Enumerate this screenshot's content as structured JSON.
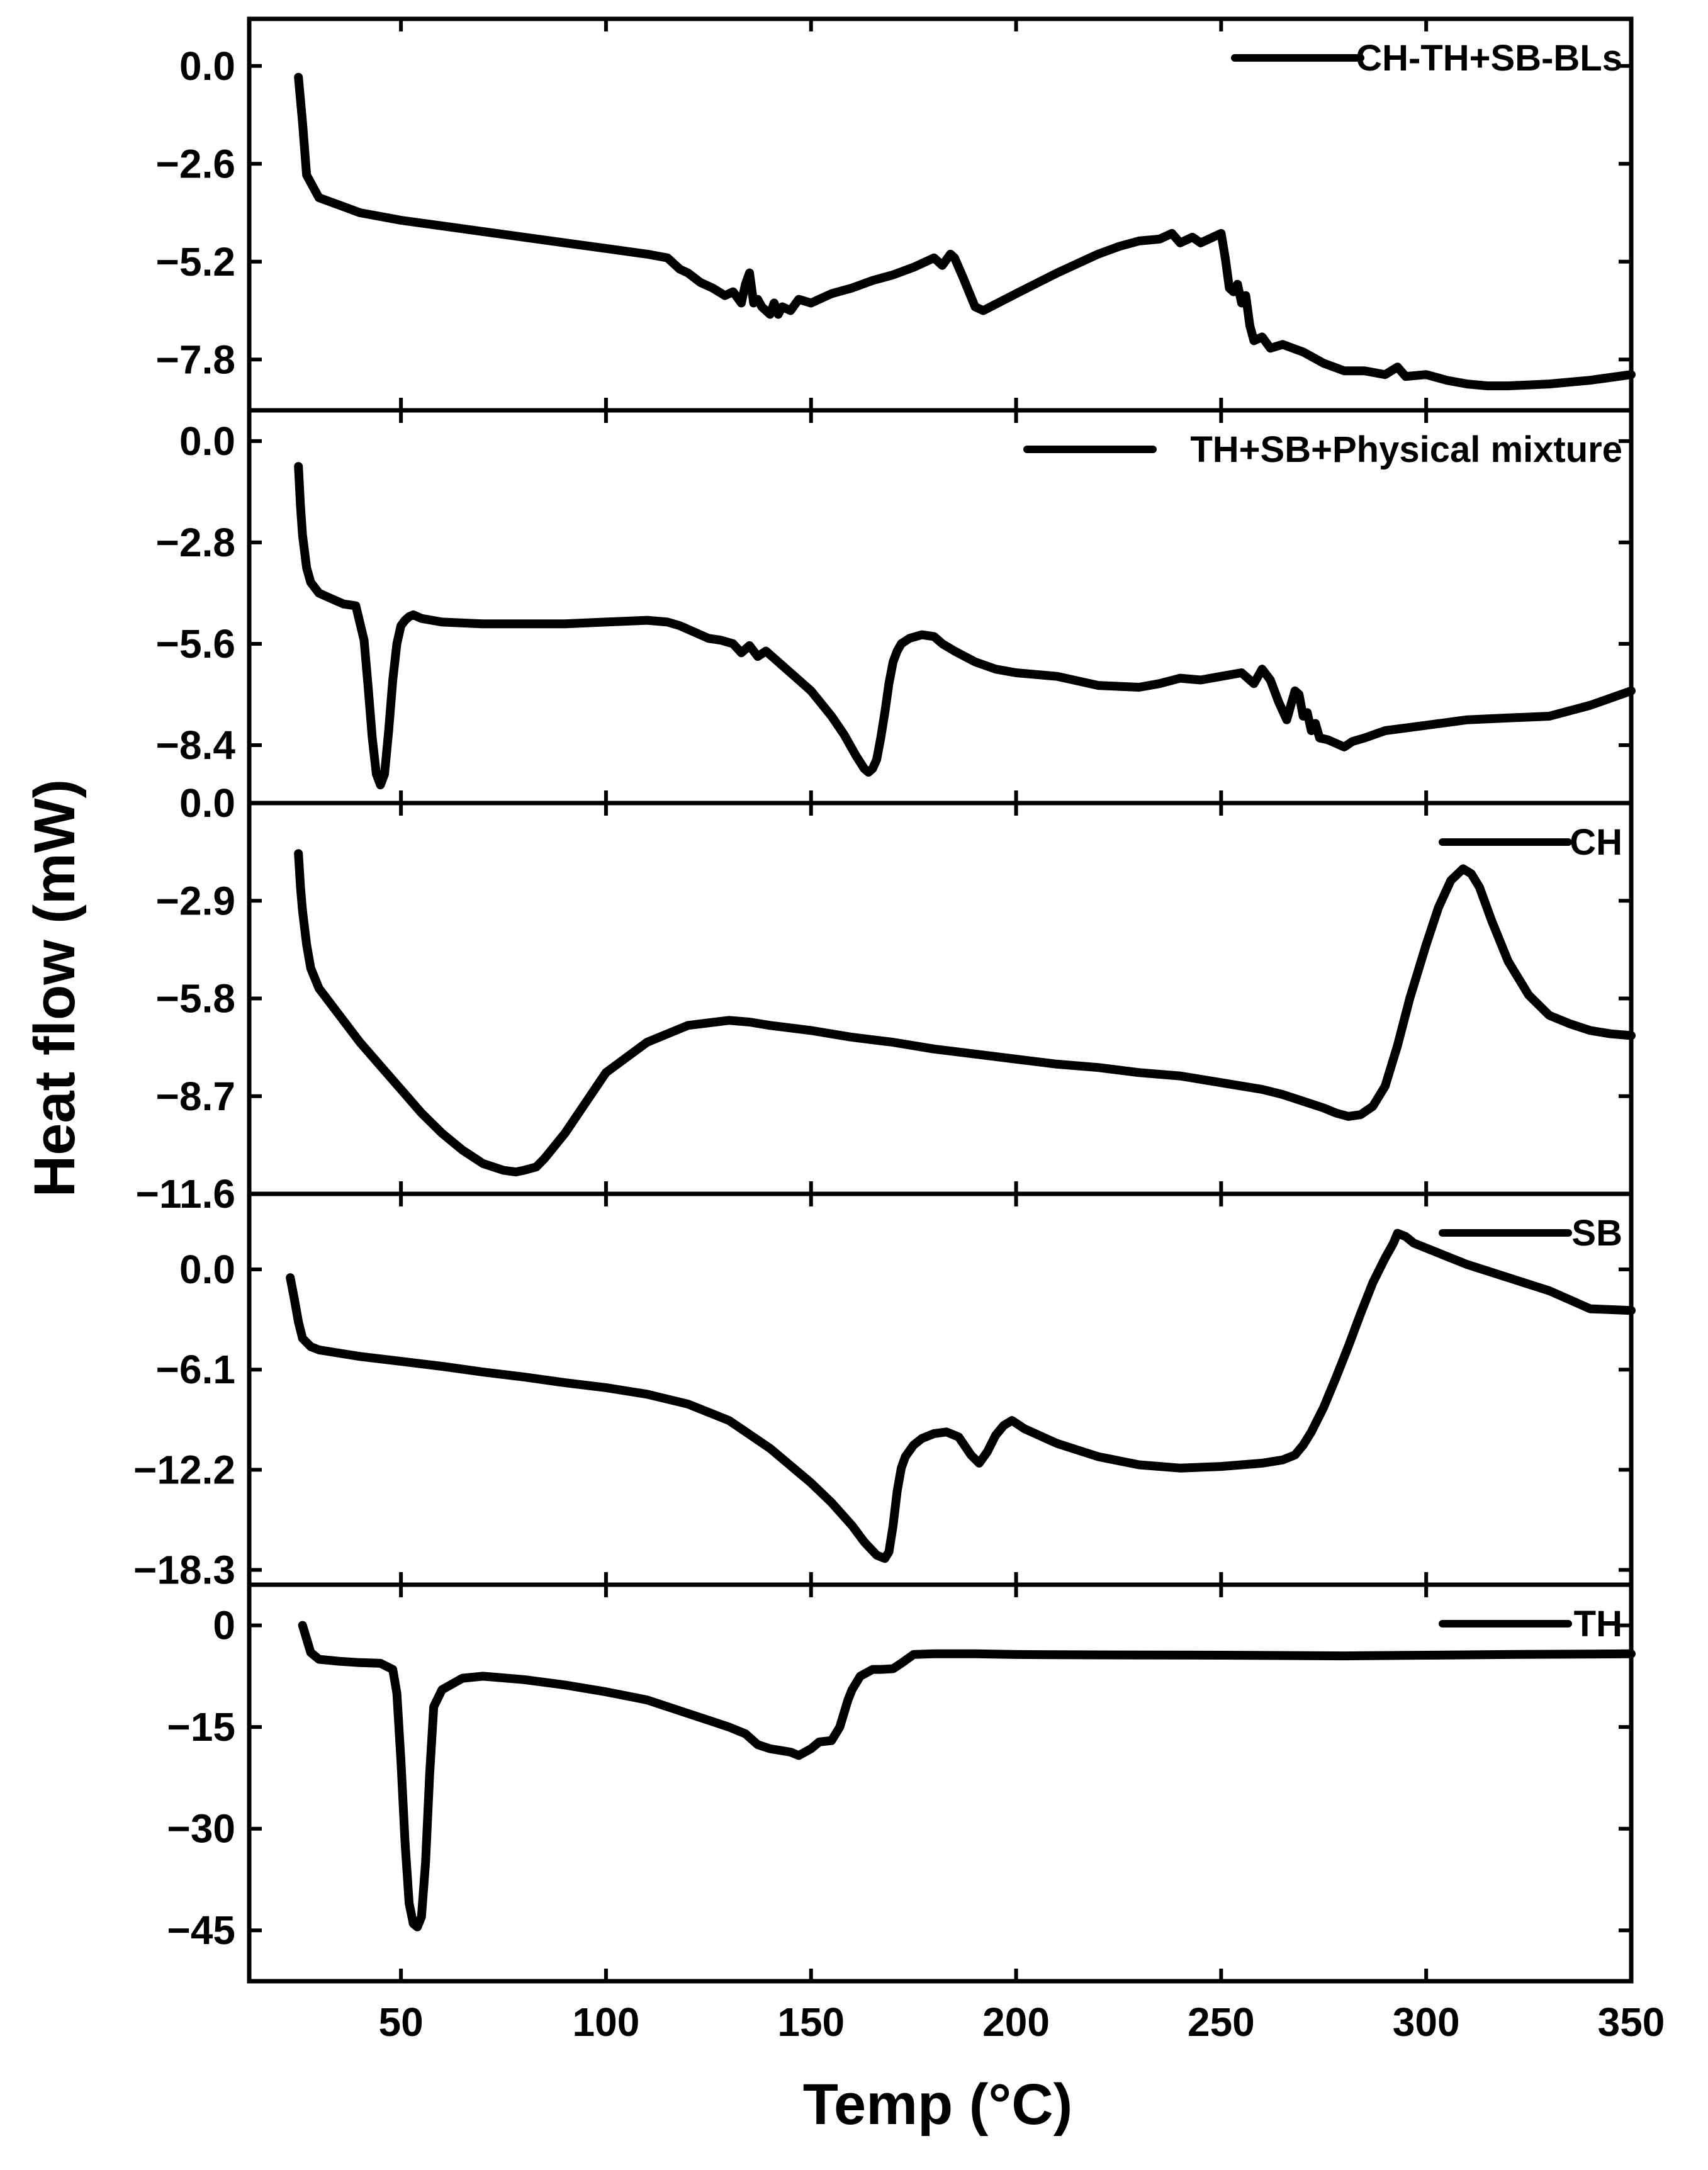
{
  "chart_data": {
    "type": "line",
    "layout": "stacked-panels",
    "xlabel": "Temp (°C)",
    "ylabel": "Heat flow (mW)",
    "xlim": [
      13,
      350
    ],
    "xticks": [
      50,
      100,
      150,
      200,
      250,
      300,
      350
    ],
    "xtick_labels": [
      "50",
      "100",
      "150",
      "200",
      "250",
      "300",
      "350"
    ],
    "grid": false,
    "legend_placement": "top-right",
    "line_color": "#000000",
    "panels": [
      {
        "name": "CH-TH+SB-BLs",
        "ylim": [
          -9.15,
          1.25
        ],
        "yticks": [
          0.0,
          -2.6,
          -5.2,
          -7.8
        ],
        "ytick_labels": [
          "0.0",
          "-2.6",
          "-5.2",
          "-7.8"
        ],
        "x": [
          25,
          26,
          27,
          30,
          35,
          40,
          50,
          60,
          70,
          80,
          90,
          100,
          110,
          115,
          118,
          120,
          123,
          126,
          129,
          131,
          133,
          134,
          135,
          136,
          137,
          138,
          140,
          141,
          142,
          143,
          145,
          147,
          150,
          155,
          160,
          165,
          170,
          175,
          180,
          182,
          184,
          185,
          187,
          190,
          192,
          200,
          210,
          220,
          225,
          230,
          235,
          238,
          240,
          243,
          245,
          247,
          250,
          251,
          252,
          253,
          254,
          255,
          256,
          257,
          258,
          260,
          262,
          265,
          270,
          275,
          280,
          285,
          290,
          293,
          295,
          300,
          305,
          310,
          315,
          320,
          330,
          340,
          350
        ],
        "y": [
          -0.3,
          -1.5,
          -2.9,
          -3.5,
          -3.7,
          -3.9,
          -4.1,
          -4.25,
          -4.4,
          -4.55,
          -4.7,
          -4.85,
          -5.0,
          -5.1,
          -5.4,
          -5.5,
          -5.75,
          -5.9,
          -6.1,
          -6.0,
          -6.3,
          -5.8,
          -5.5,
          -6.3,
          -6.2,
          -6.4,
          -6.6,
          -6.3,
          -6.6,
          -6.4,
          -6.5,
          -6.2,
          -6.3,
          -6.05,
          -5.9,
          -5.7,
          -5.55,
          -5.35,
          -5.1,
          -5.3,
          -5.0,
          -5.1,
          -5.6,
          -6.4,
          -6.5,
          -6.05,
          -5.5,
          -5.0,
          -4.8,
          -4.65,
          -4.6,
          -4.45,
          -4.7,
          -4.55,
          -4.7,
          -4.6,
          -4.45,
          -5.1,
          -5.9,
          -6.0,
          -5.8,
          -6.3,
          -6.1,
          -6.9,
          -7.3,
          -7.2,
          -7.5,
          -7.4,
          -7.6,
          -7.9,
          -8.1,
          -8.1,
          -8.2,
          -8.0,
          -8.25,
          -8.2,
          -8.35,
          -8.45,
          -8.5,
          -8.5,
          -8.45,
          -8.35,
          -8.2
        ]
      },
      {
        "name": "TH+SB+Physical mixture",
        "ylim": [
          -10.0,
          0.85
        ],
        "yticks": [
          0.0,
          -2.8,
          -5.6,
          -8.4
        ],
        "ytick_labels": [
          "0.0",
          "-2.8",
          "-5.6",
          "-8.4"
        ],
        "x": [
          25,
          25.5,
          26,
          27,
          28,
          30,
          33,
          36,
          39,
          41,
          42,
          43,
          44,
          45,
          46,
          47,
          48,
          49,
          50,
          51,
          52,
          53,
          55,
          60,
          70,
          80,
          90,
          100,
          110,
          115,
          118,
          122,
          125,
          128,
          131,
          133,
          135,
          137,
          139,
          141,
          145,
          150,
          155,
          158,
          161,
          163,
          164,
          165,
          166,
          167,
          168,
          169,
          170,
          171,
          172,
          174,
          177,
          180,
          182,
          185,
          190,
          195,
          200,
          210,
          220,
          230,
          235,
          240,
          245,
          250,
          255,
          258,
          260,
          262,
          264,
          266,
          267,
          268,
          269,
          270,
          271,
          272,
          273,
          274,
          276,
          278,
          280,
          282,
          285,
          290,
          300,
          310,
          320,
          330,
          340,
          350
        ],
        "y": [
          -0.7,
          -1.8,
          -2.6,
          -3.5,
          -3.9,
          -4.2,
          -4.35,
          -4.5,
          -4.55,
          -5.5,
          -6.8,
          -8.2,
          -9.2,
          -9.5,
          -9.2,
          -8.0,
          -6.6,
          -5.6,
          -5.1,
          -4.95,
          -4.85,
          -4.8,
          -4.9,
          -5.0,
          -5.05,
          -5.05,
          -5.05,
          -5.0,
          -4.95,
          -5.0,
          -5.1,
          -5.3,
          -5.45,
          -5.5,
          -5.6,
          -5.85,
          -5.65,
          -5.95,
          -5.8,
          -6.0,
          -6.4,
          -6.9,
          -7.6,
          -8.1,
          -8.7,
          -9.05,
          -9.15,
          -9.05,
          -8.8,
          -8.2,
          -7.5,
          -6.7,
          -6.1,
          -5.8,
          -5.6,
          -5.45,
          -5.35,
          -5.4,
          -5.6,
          -5.8,
          -6.1,
          -6.3,
          -6.4,
          -6.5,
          -6.75,
          -6.8,
          -6.7,
          -6.55,
          -6.6,
          -6.5,
          -6.4,
          -6.7,
          -6.3,
          -6.6,
          -7.2,
          -7.7,
          -7.3,
          -6.9,
          -7.0,
          -7.6,
          -7.5,
          -8.0,
          -7.8,
          -8.2,
          -8.25,
          -8.35,
          -8.45,
          -8.3,
          -8.2,
          -8.0,
          -7.85,
          -7.7,
          -7.65,
          -7.6,
          -7.3,
          -6.9
        ]
      },
      {
        "name": "CH",
        "ylim": [
          -11.6,
          0.0
        ],
        "yticks": [
          0.0,
          -2.9,
          -5.8,
          -8.7,
          -11.6
        ],
        "ytick_labels": [
          "0.0",
          "-2.9",
          "-5.8",
          "-8.7",
          "-11.6"
        ],
        "x": [
          25,
          25.5,
          26,
          27,
          28,
          30,
          35,
          40,
          45,
          50,
          55,
          60,
          65,
          70,
          75,
          78,
          80,
          83,
          85,
          90,
          95,
          100,
          110,
          120,
          130,
          135,
          140,
          150,
          160,
          170,
          180,
          190,
          200,
          210,
          220,
          230,
          240,
          250,
          260,
          265,
          270,
          275,
          278,
          281,
          284,
          287,
          290,
          293,
          296,
          300,
          303,
          306,
          309,
          311,
          313,
          316,
          320,
          325,
          330,
          335,
          340,
          345,
          350
        ],
        "y": [
          -1.5,
          -2.5,
          -3.2,
          -4.2,
          -4.9,
          -5.5,
          -6.3,
          -7.1,
          -7.8,
          -8.5,
          -9.2,
          -9.8,
          -10.3,
          -10.7,
          -10.9,
          -10.95,
          -10.9,
          -10.8,
          -10.55,
          -9.8,
          -8.9,
          -8.0,
          -7.1,
          -6.6,
          -6.45,
          -6.5,
          -6.6,
          -6.75,
          -6.95,
          -7.1,
          -7.3,
          -7.45,
          -7.6,
          -7.75,
          -7.85,
          -8.0,
          -8.1,
          -8.3,
          -8.5,
          -8.65,
          -8.85,
          -9.05,
          -9.2,
          -9.3,
          -9.25,
          -9.0,
          -8.4,
          -7.2,
          -5.8,
          -4.2,
          -3.1,
          -2.3,
          -1.95,
          -2.1,
          -2.5,
          -3.5,
          -4.7,
          -5.7,
          -6.3,
          -6.55,
          -6.75,
          -6.85,
          -6.9
        ]
      },
      {
        "name": "SB",
        "ylim": [
          -19.2,
          4.6
        ],
        "yticks": [
          0.0,
          -6.1,
          -12.2,
          -18.3
        ],
        "ytick_labels": [
          "0.0",
          "-6.1",
          "-12.2",
          "-18.3"
        ],
        "x": [
          23,
          24,
          25,
          26,
          28,
          30,
          35,
          40,
          50,
          60,
          70,
          80,
          90,
          100,
          110,
          120,
          130,
          140,
          150,
          155,
          160,
          163,
          166,
          168,
          169,
          170,
          171,
          172,
          173,
          175,
          177,
          180,
          183,
          186,
          189,
          191,
          193,
          195,
          197,
          199,
          202,
          210,
          220,
          230,
          240,
          250,
          255,
          260,
          265,
          268,
          270,
          272,
          275,
          278,
          281,
          284,
          287,
          290,
          292,
          293,
          295,
          297,
          300,
          305,
          310,
          320,
          330,
          340,
          350
        ],
        "y": [
          -0.5,
          -1.8,
          -3.2,
          -4.2,
          -4.7,
          -4.9,
          -5.1,
          -5.3,
          -5.6,
          -5.9,
          -6.25,
          -6.55,
          -6.9,
          -7.2,
          -7.6,
          -8.2,
          -9.2,
          -10.9,
          -13.0,
          -14.2,
          -15.6,
          -16.6,
          -17.4,
          -17.6,
          -17.2,
          -15.6,
          -13.5,
          -12.1,
          -11.4,
          -10.7,
          -10.3,
          -10.0,
          -9.9,
          -10.2,
          -11.3,
          -11.8,
          -11.1,
          -10.1,
          -9.5,
          -9.2,
          -9.7,
          -10.6,
          -11.4,
          -11.9,
          -12.1,
          -12.0,
          -11.9,
          -11.8,
          -11.6,
          -11.3,
          -10.7,
          -9.9,
          -8.4,
          -6.6,
          -4.7,
          -2.7,
          -0.8,
          0.7,
          1.6,
          2.2,
          2.0,
          1.6,
          1.3,
          0.8,
          0.3,
          -0.5,
          -1.3,
          -2.4,
          -2.5
        ]
      },
      {
        "name": "TH",
        "ylim": [
          -52.5,
          6.0
        ],
        "yticks": [
          0,
          -15,
          -30,
          -45
        ],
        "ytick_labels": [
          "0",
          "-15",
          "-30",
          "-45"
        ],
        "x": [
          26,
          27,
          28,
          30,
          35,
          40,
          45,
          48,
          49,
          50,
          51,
          52,
          53,
          54,
          55,
          56,
          57,
          58,
          60,
          65,
          70,
          80,
          90,
          100,
          110,
          120,
          130,
          134,
          137,
          140,
          145,
          147,
          150,
          152,
          155,
          157,
          159,
          160,
          162,
          165,
          167,
          170,
          172,
          175,
          180,
          190,
          200,
          220,
          250,
          280,
          300,
          320,
          350
        ],
        "y": [
          0.0,
          -2.0,
          -4.0,
          -5.0,
          -5.3,
          -5.5,
          -5.6,
          -6.5,
          -10.0,
          -20.0,
          -32.0,
          -41.0,
          -44.0,
          -44.5,
          -43.0,
          -35.0,
          -22.0,
          -12.0,
          -9.5,
          -7.8,
          -7.5,
          -8.0,
          -8.8,
          -9.8,
          -11.0,
          -13.0,
          -15.0,
          -16.0,
          -17.6,
          -18.2,
          -18.7,
          -19.2,
          -18.2,
          -17.2,
          -17.0,
          -15.0,
          -11.0,
          -9.5,
          -7.5,
          -6.5,
          -6.5,
          -6.4,
          -5.6,
          -4.3,
          -4.2,
          -4.2,
          -4.3,
          -4.35,
          -4.4,
          -4.5,
          -4.4,
          -4.3,
          -4.2
        ]
      }
    ]
  }
}
